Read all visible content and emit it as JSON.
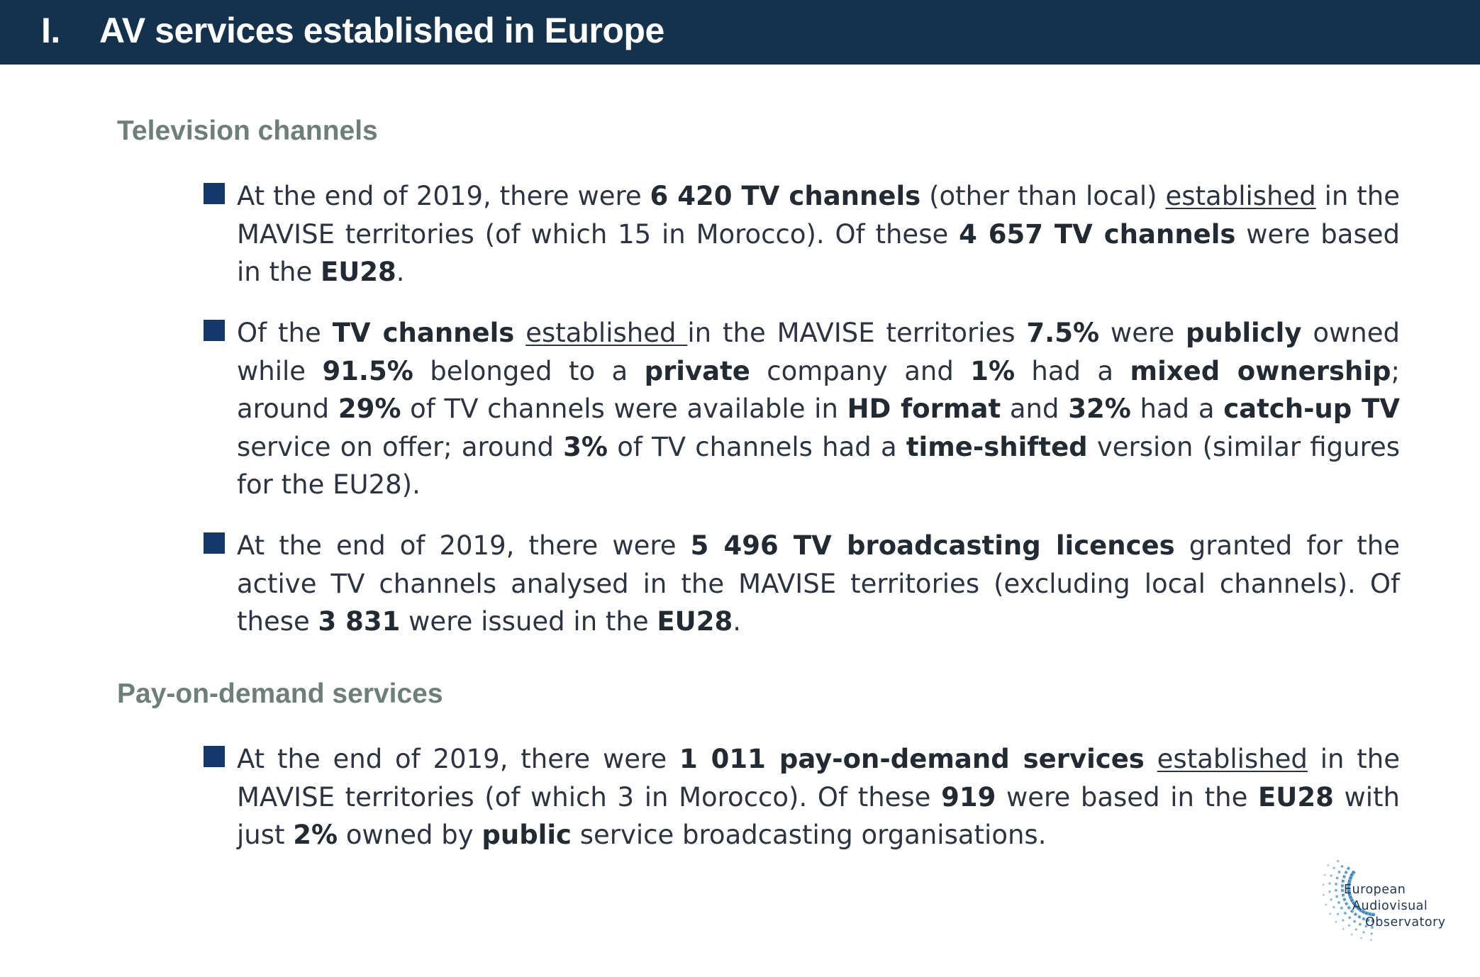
{
  "header": {
    "number": "I.",
    "title": "AV services established in Europe"
  },
  "sections": [
    {
      "heading": "Television channels",
      "bullets": [
        {
          "segments": [
            {
              "text": "At the end of 2019, there were "
            },
            {
              "text": "6 420 TV channels",
              "bold": true
            },
            {
              "text": " (other than local) "
            },
            {
              "text": "established",
              "underline": true
            },
            {
              "text": " in the MAVISE territories (of which 15 in Morocco). Of these "
            },
            {
              "text": "4 657 TV channels",
              "bold": true
            },
            {
              "text": " were based in the "
            },
            {
              "text": "EU28",
              "bold": true
            },
            {
              "text": "."
            }
          ]
        },
        {
          "segments": [
            {
              "text": "Of the "
            },
            {
              "text": "TV channels",
              "bold": true
            },
            {
              "text": " "
            },
            {
              "text": "established ",
              "underline": true
            },
            {
              "text": "in the MAVISE territories "
            },
            {
              "text": "7.5%",
              "bold": true
            },
            {
              "text": " were "
            },
            {
              "text": "publicly",
              "bold": true
            },
            {
              "text": " owned while "
            },
            {
              "text": "91.5%",
              "bold": true
            },
            {
              "text": " belonged to a "
            },
            {
              "text": "private",
              "bold": true
            },
            {
              "text": " company and "
            },
            {
              "text": "1%",
              "bold": true
            },
            {
              "text": " had a "
            },
            {
              "text": "mixed ownership",
              "bold": true
            },
            {
              "text": "; around "
            },
            {
              "text": "29%",
              "bold": true
            },
            {
              "text": " of TV channels were available in "
            },
            {
              "text": "HD format",
              "bold": true
            },
            {
              "text": " and "
            },
            {
              "text": "32%",
              "bold": true
            },
            {
              "text": " had a "
            },
            {
              "text": "catch-up TV",
              "bold": true
            },
            {
              "text": " service on offer; around "
            },
            {
              "text": "3%",
              "bold": true
            },
            {
              "text": " of TV channels had a "
            },
            {
              "text": "time-shifted",
              "bold": true
            },
            {
              "text": " version (similar figures for the EU28)."
            }
          ]
        },
        {
          "segments": [
            {
              "text": "At the end of 2019, there were "
            },
            {
              "text": "5 496 TV broadcasting licences",
              "bold": true
            },
            {
              "text": " granted for the active TV channels analysed in the MAVISE territories (excluding local channels). Of these "
            },
            {
              "text": "3 831",
              "bold": true
            },
            {
              "text": " were issued in the "
            },
            {
              "text": "EU28",
              "bold": true
            },
            {
              "text": "."
            }
          ]
        }
      ]
    },
    {
      "heading": "Pay-on-demand services",
      "bullets": [
        {
          "segments": [
            {
              "text": "At the end of 2019, there were "
            },
            {
              "text": "1 011 pay-on-demand services",
              "bold": true
            },
            {
              "text": " "
            },
            {
              "text": "established",
              "underline": true
            },
            {
              "text": " in the MAVISE territories (of which 3 in Morocco). Of these "
            },
            {
              "text": "919",
              "bold": true
            },
            {
              "text": " were based in the "
            },
            {
              "text": "EU28",
              "bold": true
            },
            {
              "text": " with just "
            },
            {
              "text": "2%",
              "bold": true
            },
            {
              "text": " owned by "
            },
            {
              "text": "public",
              "bold": true
            },
            {
              "text": " service broadcasting organisations."
            }
          ]
        }
      ]
    }
  ],
  "logo": {
    "line1": "European",
    "line2": "Audiovisual",
    "line3": "Observatory"
  },
  "colors": {
    "header_bg": "#15324d",
    "bullet_square": "#15386a",
    "section_heading": "#6e7f7a"
  }
}
